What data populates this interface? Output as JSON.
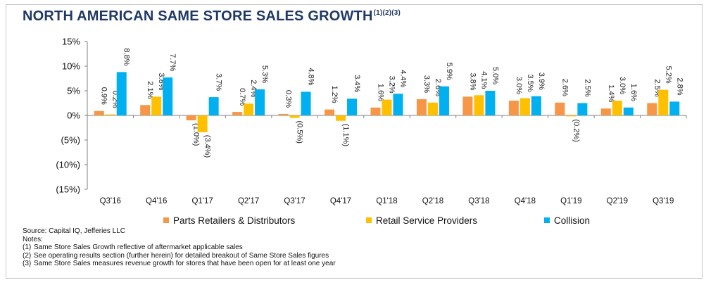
{
  "title": "NORTH AMERICAN SAME STORE SALES GROWTH",
  "title_superscript": "(1)(2)(3)",
  "colors": {
    "title": "#1f3864",
    "parts": "#f79646",
    "retail": "#ffc000",
    "collision": "#00b0f0"
  },
  "chart_data": {
    "type": "bar",
    "categories": [
      "Q3'16",
      "Q4'16",
      "Q1'17",
      "Q2'17",
      "Q3'17",
      "Q4'17",
      "Q1'18",
      "Q2'18",
      "Q3'18",
      "Q4'18",
      "Q1'19",
      "Q2'19",
      "Q3'19"
    ],
    "series": [
      {
        "name": "Parts Retailers & Distributors",
        "color": "#f79646",
        "values": [
          0.9,
          2.1,
          -1.0,
          0.7,
          0.3,
          1.2,
          1.6,
          3.3,
          3.8,
          3.0,
          2.6,
          1.4,
          2.5
        ],
        "labels": [
          "0.9%",
          "2.1%",
          "(1.0%)",
          "0.7%",
          "0.3%",
          "1.2%",
          "1.6%",
          "3.3%",
          "3.8%",
          "3.0%",
          "2.6%",
          "1.4%",
          "2.5%"
        ]
      },
      {
        "name": "Retail Service Providers",
        "color": "#ffc000",
        "values": [
          0.2,
          3.8,
          -3.4,
          2.4,
          -0.5,
          -1.1,
          3.2,
          2.6,
          4.1,
          3.5,
          -0.2,
          3.0,
          5.2
        ],
        "labels": [
          "0.2%",
          "3.8%",
          "(3.4%)",
          "2.4%",
          "(0.5%)",
          "(1.1%)",
          "3.2%",
          "2.6%",
          "4.1%",
          "3.5%",
          "(0.2%)",
          "3.0%",
          "5.2%"
        ]
      },
      {
        "name": "Collision",
        "color": "#00b0f0",
        "values": [
          8.8,
          7.7,
          3.7,
          5.3,
          4.8,
          3.4,
          4.4,
          5.9,
          5.0,
          3.9,
          2.5,
          1.6,
          2.8
        ],
        "labels": [
          "8.8%",
          "7.7%",
          "3.7%",
          "5.3%",
          "4.8%",
          "3.4%",
          "4.4%",
          "5.9%",
          "5.0%",
          "3.9%",
          "2.5%",
          "1.6%",
          "2.8%"
        ]
      }
    ],
    "ylim": [
      -15,
      15
    ],
    "yticks": [
      15,
      10,
      5,
      0,
      -5,
      -10,
      -15
    ],
    "ytick_labels": [
      "15%",
      "10%",
      "5%",
      "0%",
      "(5%)",
      "(10%)",
      "(15%)"
    ],
    "grid": false,
    "legend_position": "bottom",
    "xlabel": "",
    "ylabel": ""
  },
  "notes": {
    "source": "Source: Capital IQ, Jefferies LLC",
    "heading": "Notes:",
    "items": [
      {
        "num": "(1)",
        "text": "Same Store Sales Growth reflective of aftermarket applicable sales"
      },
      {
        "num": "(2)",
        "text": "See operating results section (further herein) for detailed breakout of Same Store Sales figures"
      },
      {
        "num": "(3)",
        "text": "Same Store Sales measures revenue growth for stores that have been open for at least one year"
      }
    ]
  }
}
